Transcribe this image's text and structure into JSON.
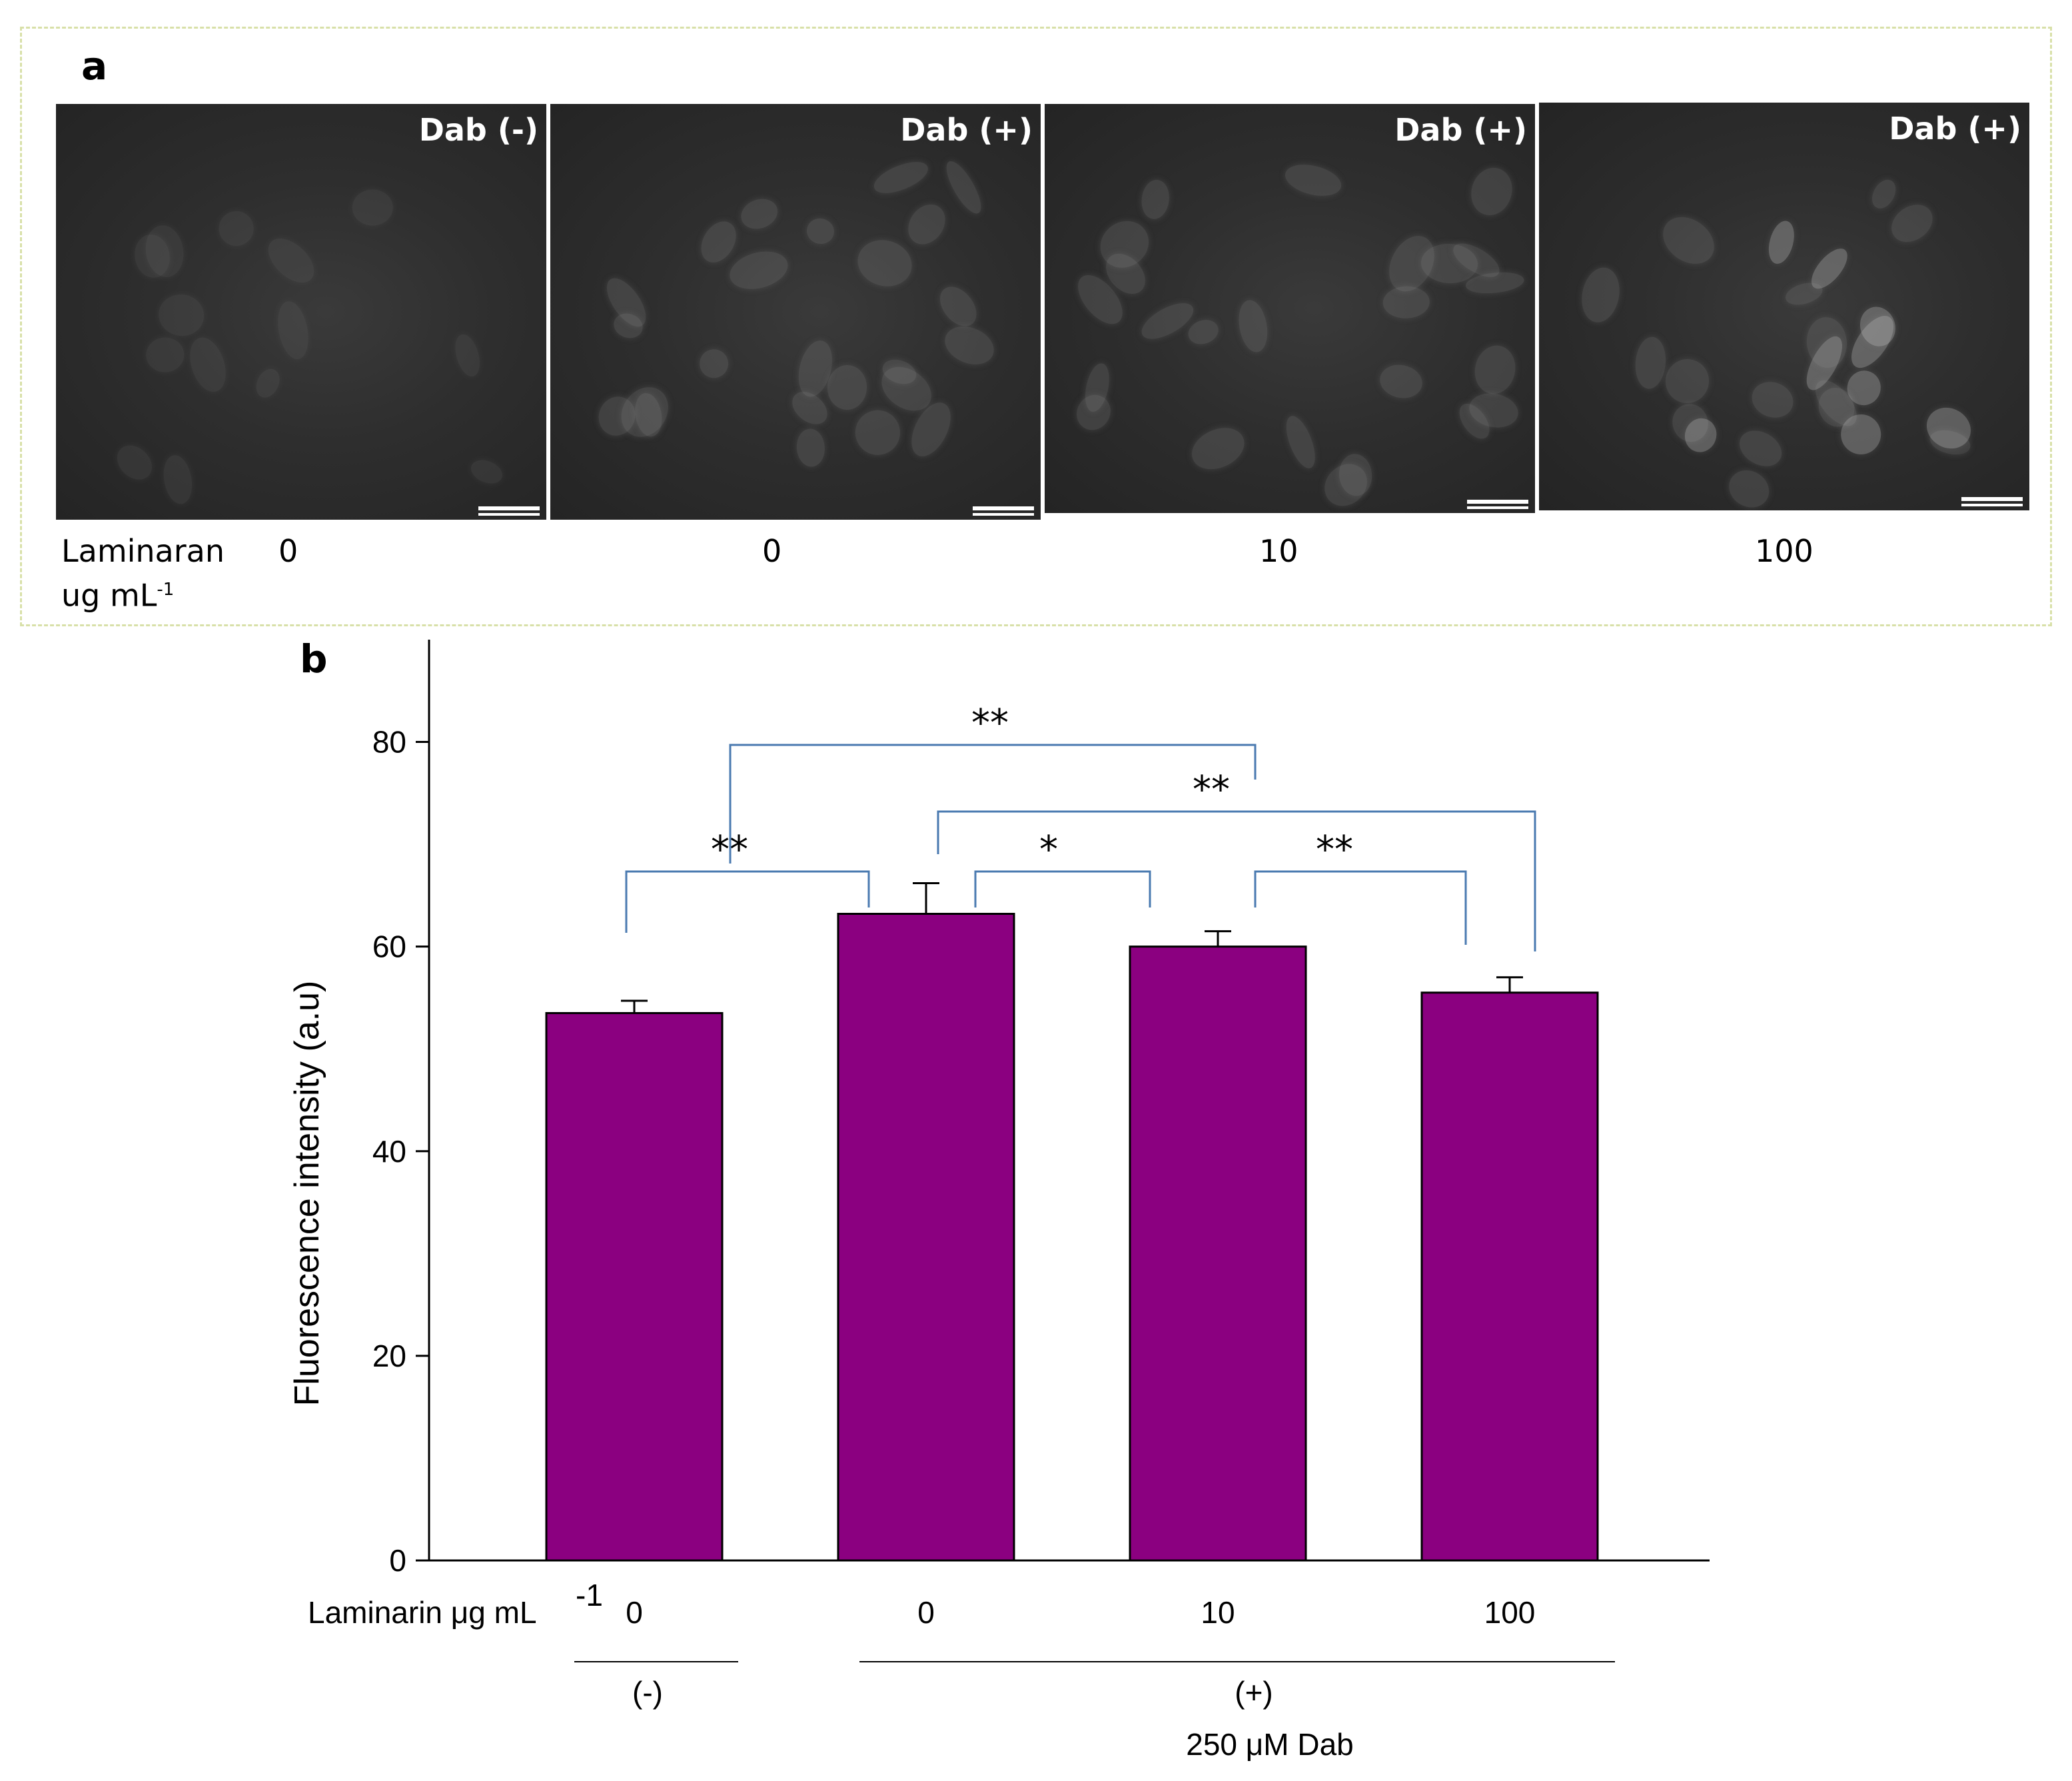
{
  "panel_a": {
    "letter": "a",
    "images": [
      {
        "tag": "Dab (-)",
        "dose": "0"
      },
      {
        "tag": "Dab (+)",
        "dose": "0"
      },
      {
        "tag": "Dab (+)",
        "dose": "10"
      },
      {
        "tag": "Dab (+)",
        "dose": "100"
      }
    ],
    "row_label_line1": "Laminaran",
    "row_label_line2": "ug mL",
    "row_label_sup": "-1"
  },
  "panel_b": {
    "letter": "b"
  },
  "chart_data": {
    "type": "bar",
    "title": "",
    "ylabel": "Fluorescence intensity (a.u)",
    "ylim": [
      0,
      90
    ],
    "yticks": [
      0,
      20,
      40,
      60,
      80
    ],
    "categories": [
      "0",
      "0",
      "10",
      "100"
    ],
    "values": [
      53.5,
      63.2,
      60.0,
      55.5
    ],
    "errors": [
      1.2,
      3.0,
      1.5,
      1.5
    ],
    "bar_color": "#8b0080",
    "x_row_label": "Laminarin μg mL",
    "x_row_label_sup": "-1",
    "groups": [
      {
        "label": "(-)",
        "members": [
          0
        ]
      },
      {
        "label": "(+)",
        "members": [
          1,
          2,
          3
        ]
      }
    ],
    "group_caption": "250 μM Dab",
    "significance": [
      {
        "from": 0,
        "to": 1,
        "mark": "**"
      },
      {
        "from": 1,
        "to": 2,
        "mark": "*"
      },
      {
        "from": 2,
        "to": 3,
        "mark": "**"
      },
      {
        "from": 1,
        "to": 3,
        "mark": "**"
      },
      {
        "from": 0,
        "to": 2,
        "mark": "**"
      }
    ],
    "grid": false,
    "bracket_color": "#4a7ab0"
  }
}
